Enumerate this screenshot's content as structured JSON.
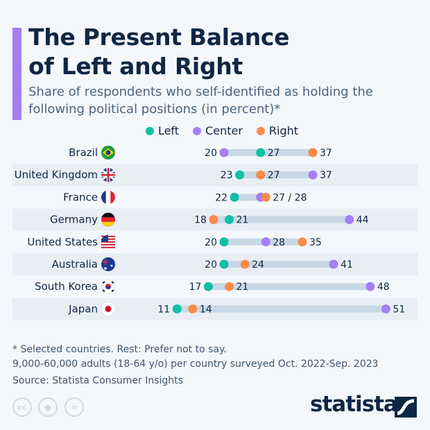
{
  "header": {
    "title_line1": "The Present Balance",
    "title_line2": "of Left and Right",
    "subtitle": "Share of respondents who self-identified as holding the following political positions (in percent)*"
  },
  "legend": [
    {
      "label": "Left",
      "color": "#12bfa6"
    },
    {
      "label": "Center",
      "color": "#a67ef4"
    },
    {
      "label": "Right",
      "color": "#ff8a4a"
    }
  ],
  "chart_data": {
    "type": "dot",
    "series": [
      {
        "name": "Left",
        "color": "#12bfa6"
      },
      {
        "name": "Center",
        "color": "#a67ef4"
      },
      {
        "name": "Right",
        "color": "#ff8a4a"
      }
    ],
    "categories": [
      "Brazil",
      "United Kingdom",
      "France",
      "Germany",
      "United States",
      "Australia",
      "South Korea",
      "Japan"
    ],
    "rows": [
      {
        "country": "Brazil",
        "flag": "brazil-flag",
        "left": 27,
        "center": 20,
        "right": 37
      },
      {
        "country": "United Kingdom",
        "flag": "uk-flag",
        "left": 23,
        "center": 37,
        "right": 27
      },
      {
        "country": "France",
        "flag": "france-flag",
        "left": 22,
        "center": 27,
        "right": 28,
        "combined_label": "27 / 28"
      },
      {
        "country": "Germany",
        "flag": "germany-flag",
        "left": 21,
        "center": 44,
        "right": 18
      },
      {
        "country": "United States",
        "flag": "us-flag",
        "left": 20,
        "center": 28,
        "right": 35
      },
      {
        "country": "Australia",
        "flag": "australia-flag",
        "left": 20,
        "center": 41,
        "right": 24
      },
      {
        "country": "South Korea",
        "flag": "south-korea-flag",
        "left": 17,
        "center": 48,
        "right": 21
      },
      {
        "country": "Japan",
        "flag": "japan-flag",
        "left": 11,
        "center": 51,
        "right": 14
      }
    ],
    "unit": "percent",
    "bar_color": "#c9d8e6"
  },
  "footer": {
    "note": "* Selected countries. Rest: Prefer not to say.",
    "sample": "9,000-60,000 adults (18-64 y/o) per country surveyed Oct. 2022-Sep. 2023",
    "source": "Source: Statista Consumer Insights"
  },
  "brand": {
    "logo": "statista",
    "license_icons": [
      "cc-icon",
      "by-icon",
      "nd-icon"
    ]
  }
}
